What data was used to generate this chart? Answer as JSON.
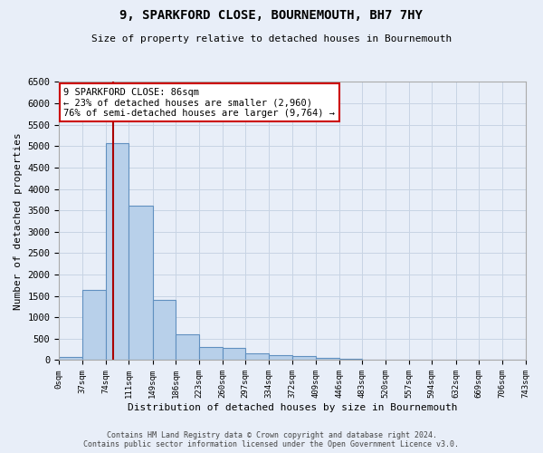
{
  "title": "9, SPARKFORD CLOSE, BOURNEMOUTH, BH7 7HY",
  "subtitle": "Size of property relative to detached houses in Bournemouth",
  "xlabel": "Distribution of detached houses by size in Bournemouth",
  "ylabel": "Number of detached properties",
  "footer_line1": "Contains HM Land Registry data © Crown copyright and database right 2024.",
  "footer_line2": "Contains public sector information licensed under the Open Government Licence v3.0.",
  "bin_edges": [
    0,
    37,
    74,
    111,
    149,
    186,
    223,
    260,
    297,
    334,
    372,
    409,
    446,
    483,
    520,
    557,
    594,
    632,
    669,
    706,
    743
  ],
  "bar_heights": [
    75,
    1650,
    5075,
    3600,
    1400,
    610,
    300,
    295,
    155,
    115,
    90,
    55,
    30,
    0,
    0,
    0,
    0,
    0,
    0,
    0
  ],
  "bar_color": "#b8d0ea",
  "bar_edge_color": "#6090c0",
  "vline_x": 86,
  "vline_color": "#aa0000",
  "ylim": [
    0,
    6500
  ],
  "yticks": [
    0,
    500,
    1000,
    1500,
    2000,
    2500,
    3000,
    3500,
    4000,
    4500,
    5000,
    5500,
    6000,
    6500
  ],
  "annotation_title": "9 SPARKFORD CLOSE: 86sqm",
  "annotation_line1": "← 23% of detached houses are smaller (2,960)",
  "annotation_line2": "76% of semi-detached houses are larger (9,764) →",
  "annotation_box_color": "#ffffff",
  "annotation_box_edge": "#cc0000",
  "grid_color": "#c8d4e4",
  "background_color": "#e8eef8",
  "tick_labels": [
    "0sqm",
    "37sqm",
    "74sqm",
    "111sqm",
    "149sqm",
    "186sqm",
    "223sqm",
    "260sqm",
    "297sqm",
    "334sqm",
    "372sqm",
    "409sqm",
    "446sqm",
    "483sqm",
    "520sqm",
    "557sqm",
    "594sqm",
    "632sqm",
    "669sqm",
    "706sqm",
    "743sqm"
  ]
}
